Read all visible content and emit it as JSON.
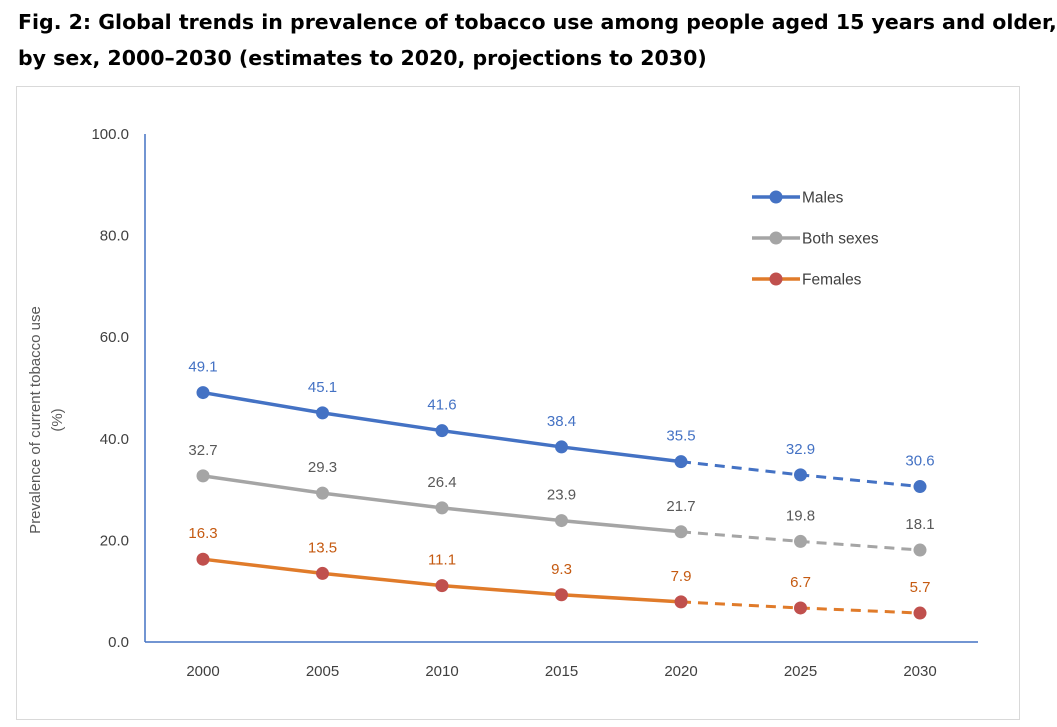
{
  "title": {
    "line1": "Fig. 2: Global trends in prevalence of tobacco use among people aged 15 years and older,",
    "line2": "by sex, 2000–2030 (estimates to 2020, projections to 2030)"
  },
  "chart_data": {
    "type": "line",
    "title": "Fig. 2: Global trends in prevalence of tobacco use among people aged 15 years and older, by sex, 2000–2030 (estimates to 2020, projections to 2030)",
    "x": [
      2000,
      2005,
      2010,
      2015,
      2020,
      2025,
      2030
    ],
    "x_tick_labels": [
      "2000",
      "2005",
      "2010",
      "2015",
      "2020",
      "2025",
      "2030"
    ],
    "xlabel": "",
    "ylabel_lines": [
      "Prevalence of current tobacco use",
      "(%)"
    ],
    "ylim": [
      0,
      100
    ],
    "y_ticks": [
      0,
      20,
      40,
      60,
      80,
      100
    ],
    "y_tick_labels": [
      "0.0",
      "20.0",
      "40.0",
      "60.0",
      "80.0",
      "100.0"
    ],
    "grid": false,
    "legend_position": "top-right",
    "projection_start_x": 2020,
    "series": [
      {
        "name": "Males",
        "color": "#4472c4",
        "values": [
          49.1,
          45.1,
          41.6,
          38.4,
          35.5,
          32.9,
          30.6
        ],
        "labels": [
          "49.1",
          "45.1",
          "41.6",
          "38.4",
          "35.5",
          "32.9",
          "30.6"
        ]
      },
      {
        "name": "Both sexes",
        "color": "#a5a5a5",
        "label_color": "#595959",
        "values": [
          32.7,
          29.3,
          26.4,
          23.9,
          21.7,
          19.8,
          18.1
        ],
        "labels": [
          "32.7",
          "29.3",
          "26.4",
          "23.9",
          "21.7",
          "19.8",
          "18.1"
        ]
      },
      {
        "name": "Females",
        "color": "#e07b2a",
        "marker_color": "#c0504d",
        "label_color": "#c55a11",
        "values": [
          16.3,
          13.5,
          11.1,
          9.3,
          7.9,
          6.7,
          5.7
        ],
        "labels": [
          "16.3",
          "13.5",
          "11.1",
          "9.3",
          "7.9",
          "6.7",
          "5.7"
        ]
      }
    ]
  }
}
